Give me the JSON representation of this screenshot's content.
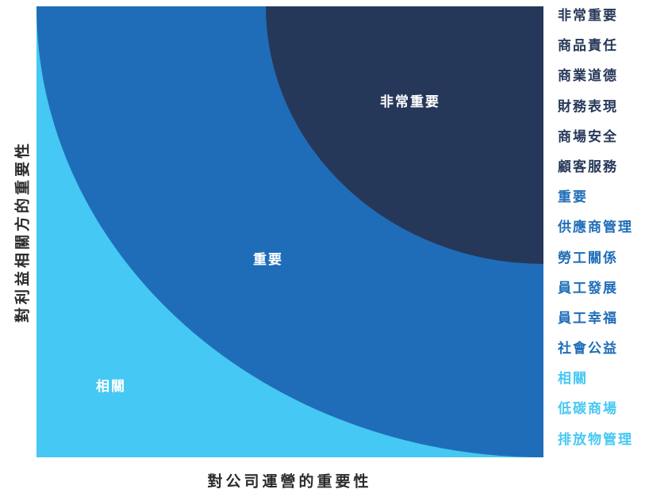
{
  "diagram": {
    "y_axis_label": "對利益相關方的重要性",
    "x_axis_label": "對公司運營的重要性",
    "zones": [
      {
        "key": "very_important",
        "label": "非常重要",
        "color": "#263859"
      },
      {
        "key": "important",
        "label": "重要",
        "color": "#1f6db8"
      },
      {
        "key": "relevant",
        "label": "相關",
        "color": "#45c8f3"
      }
    ],
    "legend": [
      {
        "text": "非常重要",
        "color": "#263859"
      },
      {
        "text": "商品責任",
        "color": "#263859"
      },
      {
        "text": "商業道德",
        "color": "#263859"
      },
      {
        "text": "財務表現",
        "color": "#263859"
      },
      {
        "text": "商場安全",
        "color": "#263859"
      },
      {
        "text": "顧客服務",
        "color": "#263859"
      },
      {
        "text": "重要",
        "color": "#1f6db8"
      },
      {
        "text": "供應商管理",
        "color": "#1f6db8"
      },
      {
        "text": "勞工關係",
        "color": "#1f6db8"
      },
      {
        "text": "員工發展",
        "color": "#1f6db8"
      },
      {
        "text": "員工幸福",
        "color": "#1f6db8"
      },
      {
        "text": "社會公益",
        "color": "#1f6db8"
      },
      {
        "text": "相關",
        "color": "#45c8f3"
      },
      {
        "text": "低碳商場",
        "color": "#45c8f3"
      },
      {
        "text": "排放物管理",
        "color": "#45c8f3"
      }
    ]
  }
}
